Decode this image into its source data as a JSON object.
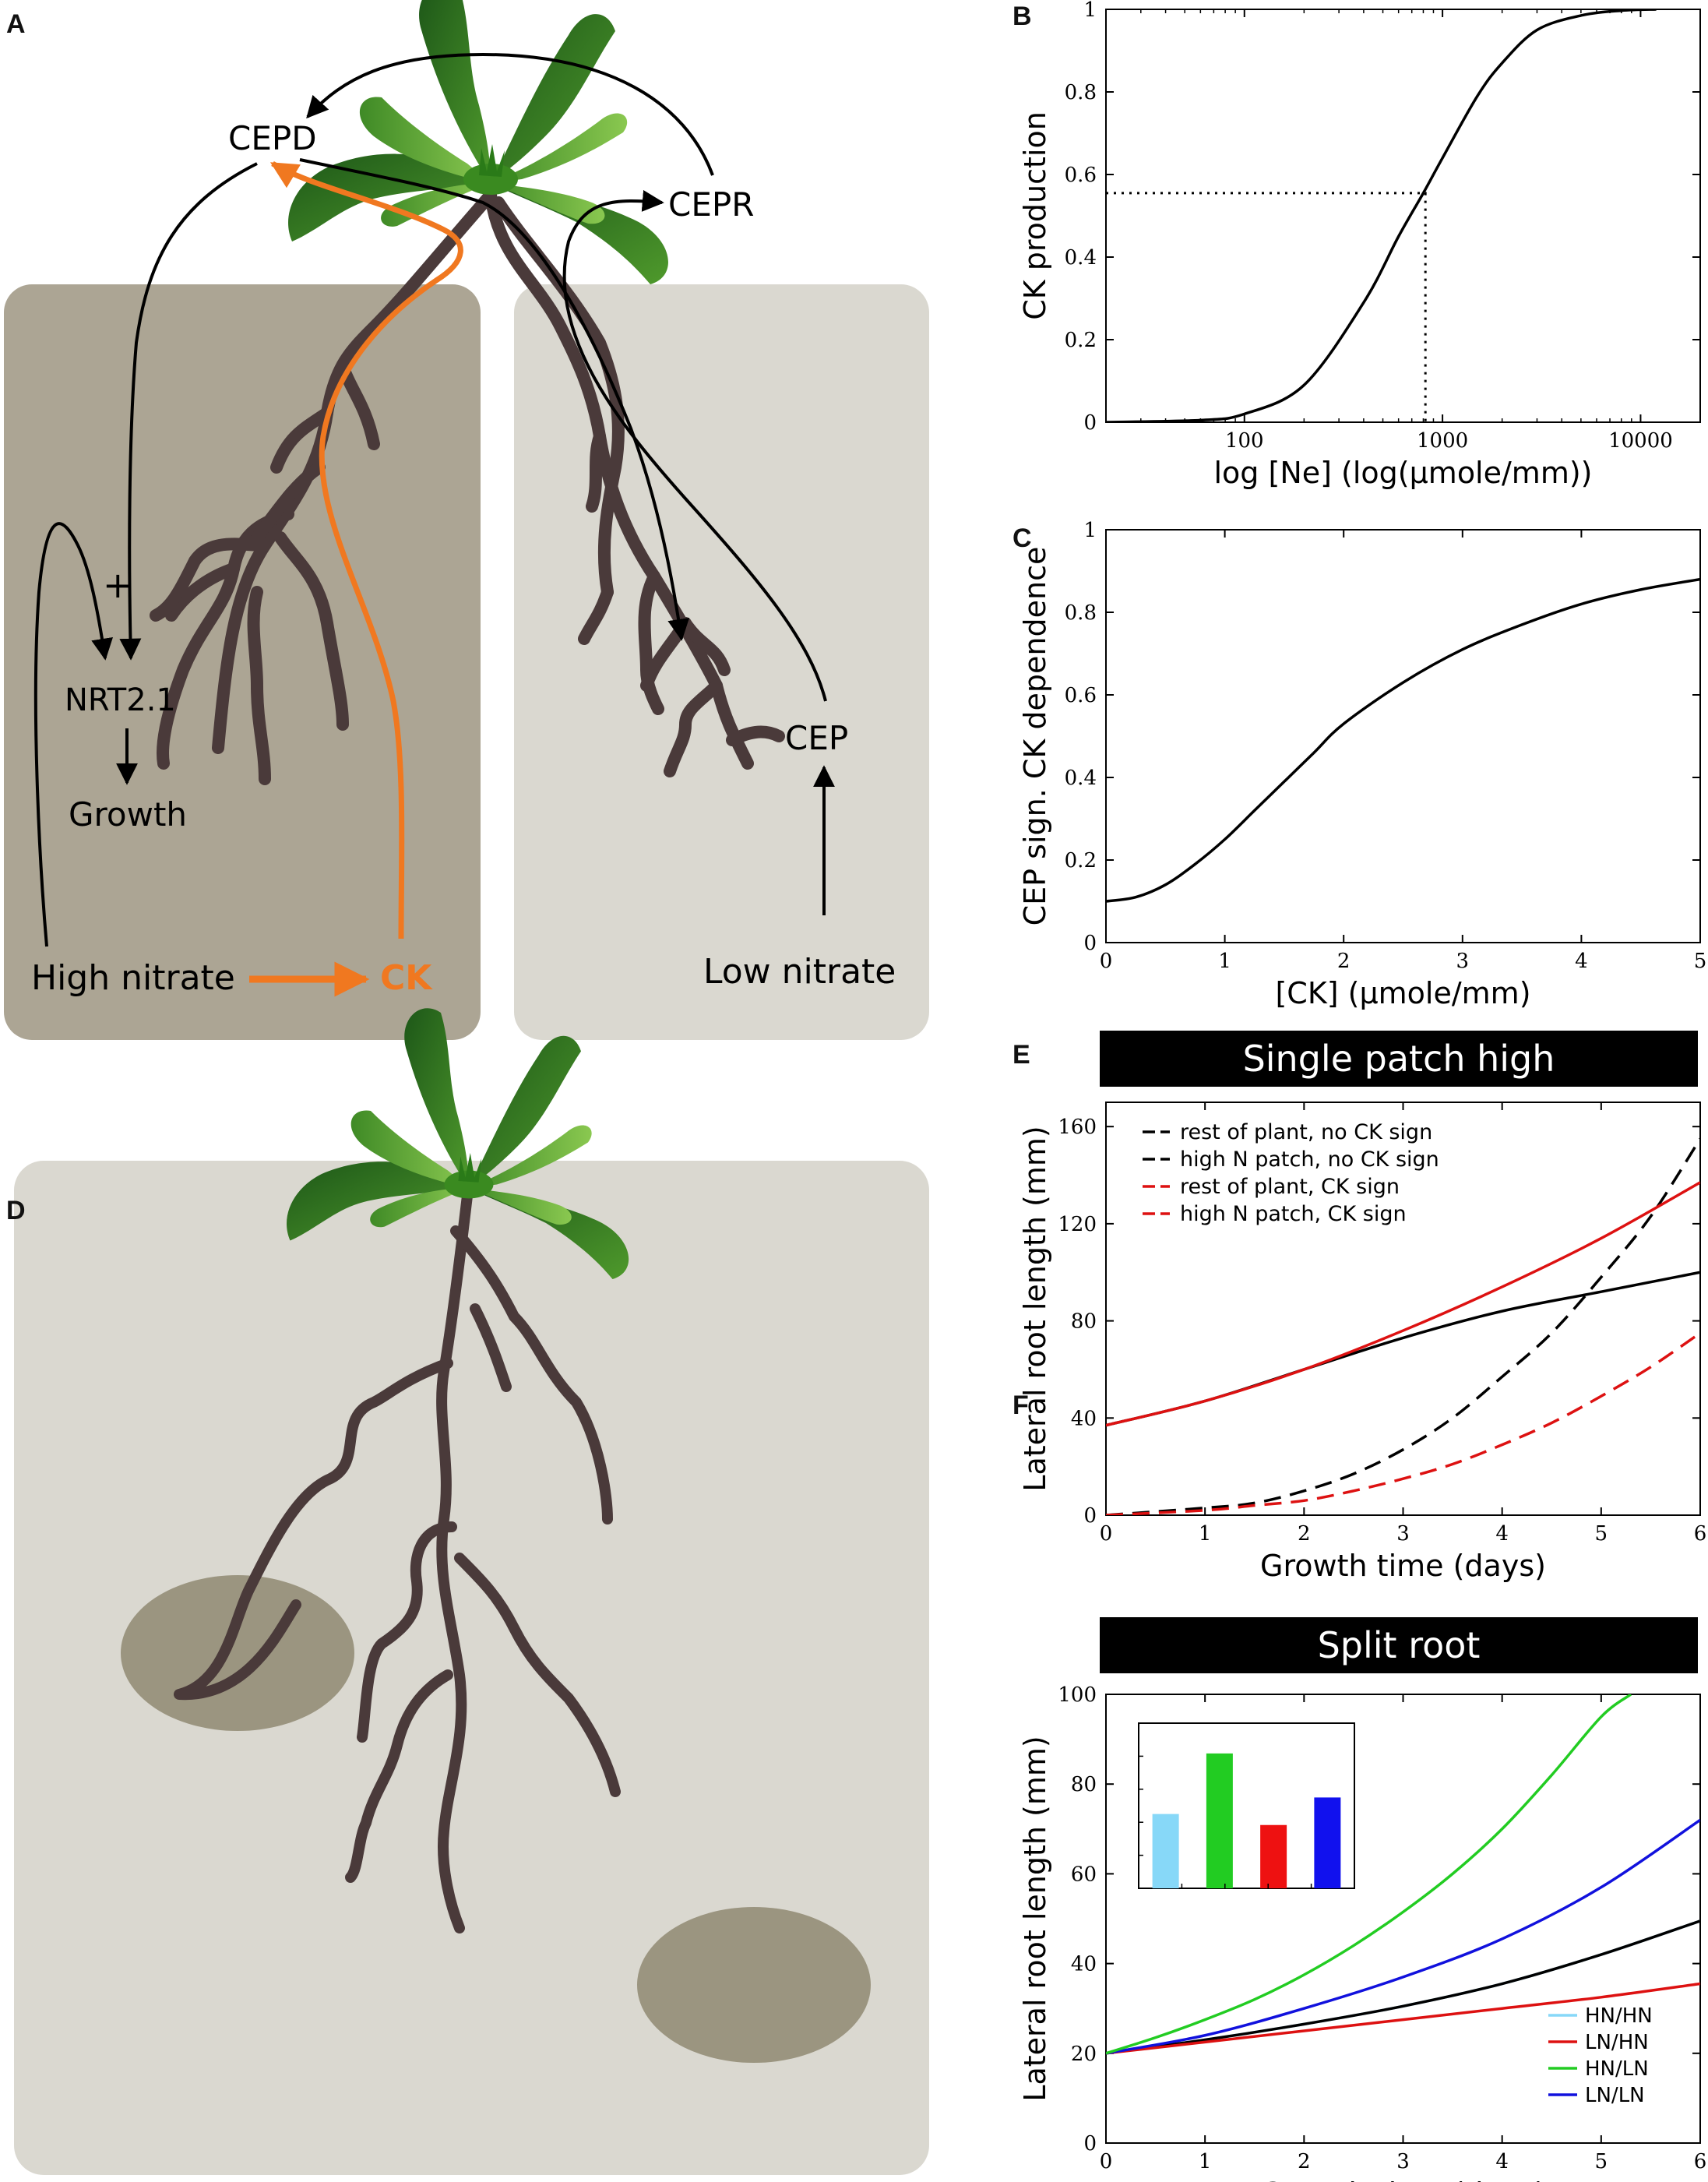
{
  "panel_labels": {
    "a": "A",
    "b": "B",
    "c": "C",
    "d": "D",
    "e": "E",
    "f": "F"
  },
  "colors": {
    "orange": "#f07820",
    "soil_dark": "#aca594",
    "soil_light": "#dad8d0",
    "patch": "#9b9580",
    "root": "#4a3a3a",
    "leaf_dark": "#1f5a1a",
    "leaf_light": "#6aaa3a"
  },
  "diagram": {
    "cepd": "CEPD",
    "cepr": "CEPR",
    "plus": "+",
    "nrt": "NRT2.1",
    "growth": "Growth",
    "high_nitrate": "High nitrate",
    "ck": "CK",
    "cep": "CEP",
    "low_nitrate": "Low nitrate"
  },
  "chart_data": [
    {
      "id": "B",
      "type": "line",
      "xlabel": "log [Ne] (log(μmole/mm))",
      "ylabel": "CK production",
      "x_scale": "log",
      "xlim": [
        20,
        20000
      ],
      "ylim": [
        0,
        1
      ],
      "xticks": [
        "100",
        "1000",
        "10000"
      ],
      "yticks": [
        "0",
        "0.2",
        "0.4",
        "0.6",
        "0.8",
        "1"
      ],
      "series": [
        {
          "x": [
            20,
            60,
            100,
            200,
            400,
            600,
            800,
            1000,
            1500,
            2000,
            3000,
            5000,
            8000,
            12000
          ],
          "y": [
            0.0,
            0.005,
            0.02,
            0.09,
            0.29,
            0.45,
            0.555,
            0.64,
            0.79,
            0.87,
            0.95,
            0.985,
            0.997,
            1.0
          ]
        }
      ],
      "annotations": [
        {
          "style": "dotted",
          "x": 820,
          "y": 0.555
        }
      ]
    },
    {
      "id": "C",
      "type": "line",
      "xlabel": "[CK] (μmole/mm)",
      "ylabel": "CEP sign. CK dependence",
      "xlim": [
        0,
        5
      ],
      "ylim": [
        0,
        1
      ],
      "xticks": [
        "0",
        "1",
        "2",
        "3",
        "4",
        "5"
      ],
      "yticks": [
        "0",
        "0.2",
        "0.4",
        "0.6",
        "0.8",
        "1"
      ],
      "series": [
        {
          "x": [
            0,
            0.25,
            0.5,
            0.75,
            1,
            1.25,
            1.5,
            1.75,
            2,
            2.5,
            3,
            3.5,
            4,
            4.5,
            5
          ],
          "y": [
            0.1,
            0.11,
            0.14,
            0.19,
            0.25,
            0.32,
            0.39,
            0.46,
            0.53,
            0.63,
            0.71,
            0.77,
            0.82,
            0.855,
            0.88
          ]
        }
      ]
    },
    {
      "id": "E",
      "type": "line",
      "title": "Single patch high",
      "xlabel": "Growth time (days)",
      "ylabel": "Lateral root length (mm)",
      "xlim": [
        0,
        6
      ],
      "ylim": [
        0,
        170
      ],
      "xticks": [
        "0",
        "1",
        "2",
        "3",
        "4",
        "5",
        "6"
      ],
      "yticks": [
        "0",
        "40",
        "80",
        "120",
        "160"
      ],
      "legend": "top-left",
      "series": [
        {
          "name": "rest of plant, no CK sign",
          "color": "#000000",
          "dash": false,
          "x": [
            0,
            1,
            2,
            3,
            4,
            5,
            6
          ],
          "y": [
            37,
            47,
            60,
            73,
            84,
            92,
            100
          ]
        },
        {
          "name": "high N patch, no CK sign",
          "color": "#000000",
          "dash": true,
          "x": [
            0,
            1,
            1.5,
            2,
            2.5,
            3,
            3.5,
            4,
            4.5,
            5,
            5.5,
            6
          ],
          "y": [
            0,
            3,
            5,
            10,
            17,
            27,
            40,
            57,
            75,
            98,
            123,
            155
          ]
        },
        {
          "name": "rest of plant, CK sign",
          "color": "#dd1111",
          "dash": false,
          "x": [
            0,
            1,
            2,
            3,
            4,
            5,
            6
          ],
          "y": [
            37,
            47,
            60,
            76,
            94,
            114,
            137
          ]
        },
        {
          "name": "high N patch, CK sign",
          "color": "#dd1111",
          "dash": true,
          "x": [
            0,
            1,
            1.5,
            2,
            2.5,
            3,
            3.5,
            4,
            4.5,
            5,
            5.5,
            6
          ],
          "y": [
            0,
            2,
            4,
            6,
            10,
            15,
            21,
            29,
            38,
            49,
            61,
            75
          ]
        }
      ]
    },
    {
      "id": "F",
      "type": "line",
      "title": "Split root",
      "xlabel": "Growth time (days)",
      "ylabel": "Lateral root length (mm)",
      "xlim": [
        0,
        6
      ],
      "ylim": [
        0,
        100
      ],
      "xticks": [
        "0",
        "1",
        "2",
        "3",
        "4",
        "5",
        "6"
      ],
      "yticks": [
        "0",
        "20",
        "40",
        "60",
        "80",
        "100"
      ],
      "legend": "bottom-right",
      "series": [
        {
          "name": "HN/HN",
          "color": "#87d8f8",
          "x": [
            0,
            1,
            2,
            3,
            4,
            5,
            6
          ],
          "y": [
            20,
            23,
            26.5,
            30.5,
            35.5,
            42,
            49.5
          ]
        },
        {
          "name": "LN/HN",
          "color": "#dd1111",
          "x": [
            0,
            1,
            2,
            3,
            4,
            5,
            6
          ],
          "y": [
            20,
            22.5,
            25,
            27.5,
            30,
            32.5,
            35.5
          ]
        },
        {
          "name": "HN/LN",
          "color": "#22cc22",
          "x": [
            0,
            0.5,
            1,
            1.5,
            2,
            2.5,
            3,
            3.5,
            4,
            4.5,
            5,
            5.3
          ],
          "y": [
            20,
            23.5,
            27.5,
            32,
            37.5,
            44,
            51.5,
            60,
            70,
            82,
            95,
            100
          ]
        },
        {
          "name": "LN/LN",
          "color": "#1111dd",
          "x": [
            0,
            1,
            2,
            3,
            4,
            5,
            6
          ],
          "y": [
            20,
            24,
            30,
            37,
            45.5,
            57,
            72
          ]
        },
        {
          "name": "",
          "color": "#000000",
          "x": [
            0,
            1,
            2,
            3,
            4,
            5,
            6
          ],
          "y": [
            20,
            23,
            26.5,
            30.5,
            35.5,
            42,
            49.5
          ]
        }
      ],
      "inset": {
        "type": "bar",
        "ylim": [
          40,
          100
        ],
        "bars": [
          {
            "series": "HN/HN",
            "value": 67,
            "color": "#87d8f8"
          },
          {
            "series": "HN/LN",
            "value": 89,
            "color": "#22cc22"
          },
          {
            "series": "LN/HN",
            "value": 63,
            "color": "#ee1111"
          },
          {
            "series": "LN/LN",
            "value": 73,
            "color": "#1111ee"
          }
        ]
      }
    }
  ]
}
